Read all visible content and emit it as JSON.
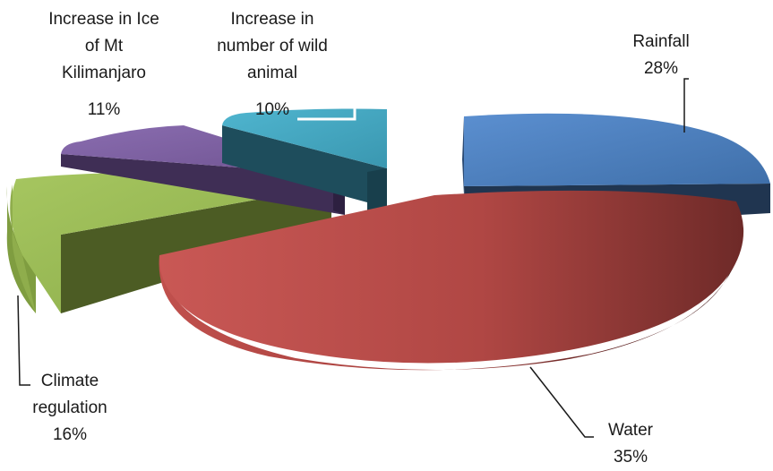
{
  "chart_data": {
    "type": "pie",
    "style": "3d-exploded",
    "title": "",
    "slices": [
      {
        "label_lines": [
          "Rainfall"
        ],
        "value": 28,
        "value_label": "28%",
        "color": "#4a7ebb"
      },
      {
        "label_lines": [
          "Water"
        ],
        "value": 35,
        "value_label": "35%",
        "color": "#be4b48"
      },
      {
        "label_lines": [
          "Climate",
          "regulation"
        ],
        "value": 16,
        "value_label": "16%",
        "color": "#98b954"
      },
      {
        "label_lines": [
          "Increase in Ice",
          "of Mt",
          "Kilimanjaro"
        ],
        "value": 11,
        "value_label": "11%",
        "color": "#7d60a0"
      },
      {
        "label_lines": [
          "Increase in",
          "number of wild",
          "animal"
        ],
        "value": 10,
        "value_label": "10%",
        "color": "#46aac5"
      }
    ],
    "legend": "none"
  }
}
